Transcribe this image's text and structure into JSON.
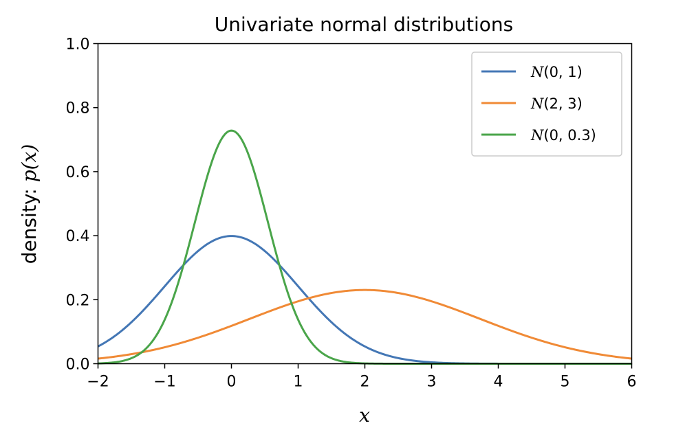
{
  "chart_data": {
    "type": "line",
    "title": "Univariate normal distributions",
    "xlabel": "x",
    "ylabel_prefix": "density: ",
    "ylabel_math": "p(x)",
    "xlim": [
      -2,
      6
    ],
    "ylim": [
      0,
      1.0
    ],
    "xticks": [
      -2,
      -1,
      0,
      1,
      2,
      3,
      4,
      5,
      6
    ],
    "xtick_labels": [
      "−2",
      "−1",
      "0",
      "1",
      "2",
      "3",
      "4",
      "5",
      "6"
    ],
    "yticks": [
      0.0,
      0.2,
      0.4,
      0.6,
      0.8,
      1.0
    ],
    "ytick_labels": [
      "0.0",
      "0.2",
      "0.4",
      "0.6",
      "0.8",
      "1.0"
    ],
    "grid": false,
    "legend_position": "top-right",
    "series": [
      {
        "name": "N(0, 1)",
        "name_math": "N",
        "name_args": "(0, 1)",
        "mean": 0,
        "variance": 1,
        "color": "#4477b5"
      },
      {
        "name": "N(2, 3)",
        "name_math": "N",
        "name_args": "(2, 3)",
        "mean": 2,
        "variance": 3,
        "color": "#f08a36"
      },
      {
        "name": "N(0, 0.3)",
        "name_math": "N",
        "name_args": "(0, 0.3)",
        "mean": 0,
        "variance": 0.3,
        "color": "#4aa54a"
      }
    ]
  }
}
